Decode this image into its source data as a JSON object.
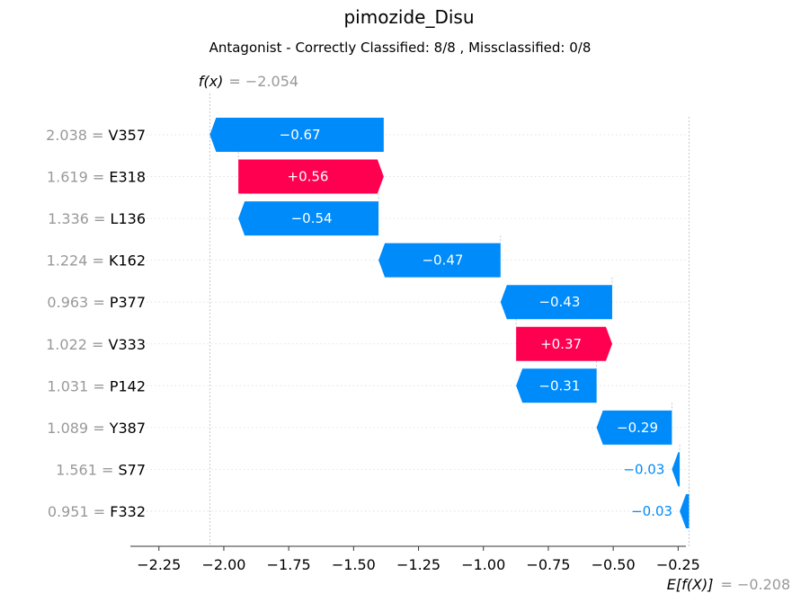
{
  "chart_data": {
    "type": "bar",
    "subtype": "shap-waterfall",
    "title": "pimozide_Disu",
    "subtitle": "Antagonist - Correctly Classified: 8/8 , Missclassified: 0/8",
    "fx_label": "f(x)",
    "fx_value_text": "= −2.054",
    "fx_value": -2.054,
    "efx_label": "E[f(X)]",
    "efx_value_text": "= −0.208",
    "base_value": -0.208,
    "xlim": [
      -2.36,
      -0.22
    ],
    "xticks": [
      -2.25,
      -2.0,
      -1.75,
      -1.5,
      -1.25,
      -1.0,
      -0.75,
      -0.5,
      -0.25
    ],
    "xtick_labels": [
      "−2.25",
      "−2.00",
      "−1.75",
      "−1.50",
      "−1.25",
      "−1.00",
      "−0.75",
      "−0.50",
      "−0.25"
    ],
    "positive_color": "#ff0051",
    "negative_color": "#008bfb",
    "features": [
      {
        "value": "2.038",
        "name": "V357",
        "start": -1.384,
        "end": -2.054,
        "label": "−0.67"
      },
      {
        "value": "1.619",
        "name": "E318",
        "start": -1.944,
        "end": -1.384,
        "label": "+0.56"
      },
      {
        "value": "1.336",
        "name": "L136",
        "start": -1.404,
        "end": -1.944,
        "label": "−0.54"
      },
      {
        "value": "1.224",
        "name": "K162",
        "start": -0.934,
        "end": -1.404,
        "label": "−0.47"
      },
      {
        "value": "0.963",
        "name": "P377",
        "start": -0.504,
        "end": -0.934,
        "label": "−0.43"
      },
      {
        "value": "1.022",
        "name": "V333",
        "start": -0.874,
        "end": -0.504,
        "label": "+0.37"
      },
      {
        "value": "1.031",
        "name": "P142",
        "start": -0.564,
        "end": -0.874,
        "label": "−0.31"
      },
      {
        "value": "1.089",
        "name": "Y387",
        "start": -0.274,
        "end": -0.564,
        "label": "−0.29"
      },
      {
        "value": "1.561",
        "name": "S77",
        "start": -0.244,
        "end": -0.274,
        "label": "−0.03"
      },
      {
        "value": "0.951",
        "name": "F332",
        "start": -0.208,
        "end": -0.244,
        "label": "−0.03"
      }
    ]
  }
}
